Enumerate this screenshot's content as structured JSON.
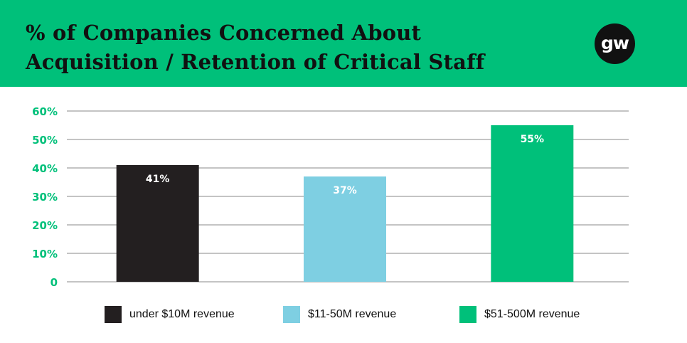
{
  "header": {
    "title_line1": "% of Companies Concerned About",
    "title_line2": "Acquisition / Retention of Critical Staff",
    "logo_text": "gw"
  },
  "colors": {
    "header_bg": "#00c07a",
    "tick_label": "#00c07a",
    "gridline": "#8a8a8a",
    "bar_label": "#ffffff"
  },
  "chart_data": {
    "type": "bar",
    "title": "% of Companies Concerned About Acquisition / Retention of Critical Staff",
    "categories": [
      "under $10M revenue",
      "$11-50M revenue",
      "$51-500M revenue"
    ],
    "values": [
      41,
      37,
      55
    ],
    "data_labels": [
      "41%",
      "37%",
      "55%"
    ],
    "bar_colors": [
      "#231f20",
      "#7ecfe2",
      "#00c07a"
    ],
    "ylim": [
      0,
      60
    ],
    "yticks": [
      0,
      10,
      20,
      30,
      40,
      50,
      60
    ],
    "ytick_labels": [
      "0",
      "10%",
      "20%",
      "30%",
      "40%",
      "50%",
      "60%"
    ],
    "xlabel": "",
    "ylabel": "",
    "grid": true,
    "legend_position": "bottom"
  },
  "legend": {
    "items": [
      {
        "label": "under $10M revenue",
        "color": "#231f20"
      },
      {
        "label": "$11-50M revenue",
        "color": "#7ecfe2"
      },
      {
        "label": "$51-500M revenue",
        "color": "#00c07a"
      }
    ]
  }
}
